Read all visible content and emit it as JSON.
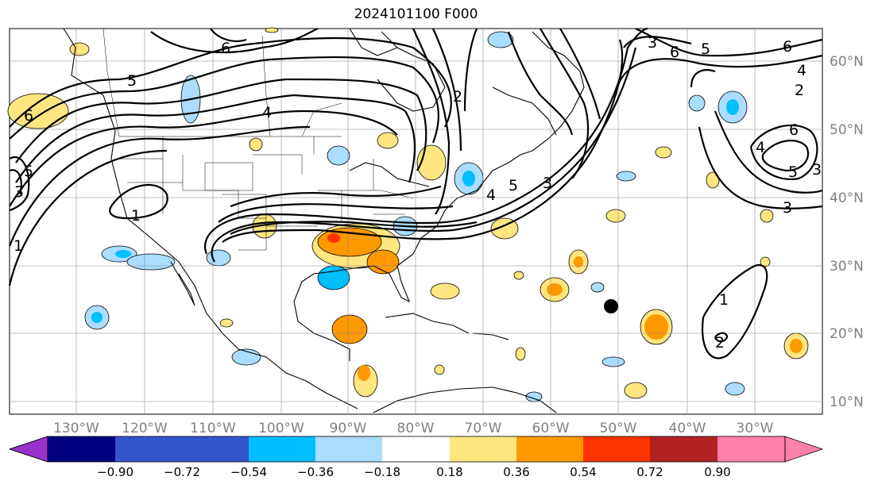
{
  "title": "2024101100 F000",
  "map": {
    "lon_labels": [
      "130°W",
      "120°W",
      "110°W",
      "100°W",
      "90°W",
      "80°W",
      "70°W",
      "60°W",
      "50°W",
      "40°W",
      "30°W"
    ],
    "lat_labels": [
      "60°N",
      "50°N",
      "40°N",
      "30°N",
      "20°N",
      "10°N"
    ],
    "contour_labels": [
      "6",
      "5",
      "4",
      "6",
      "5",
      "3",
      "2",
      "6",
      "5",
      "4",
      "2",
      "6",
      "3",
      "3",
      "5",
      "1",
      "3",
      "4",
      "3",
      "1",
      "2",
      "1",
      "6",
      "5",
      "4"
    ],
    "marker": "storm-center-dot"
  },
  "colorbar": {
    "ticks": [
      "−0.90",
      "−0.72",
      "−0.54",
      "−0.36",
      "−0.18",
      "0.18",
      "0.36",
      "0.54",
      "0.72",
      "0.90"
    ],
    "colors": [
      "#9933cc",
      "#000080",
      "#3355cc",
      "#00bfff",
      "#aaddff",
      "#ffffff",
      "#ffe680",
      "#ff9900",
      "#ff3300",
      "#b22222",
      "#ff80aa"
    ]
  }
}
